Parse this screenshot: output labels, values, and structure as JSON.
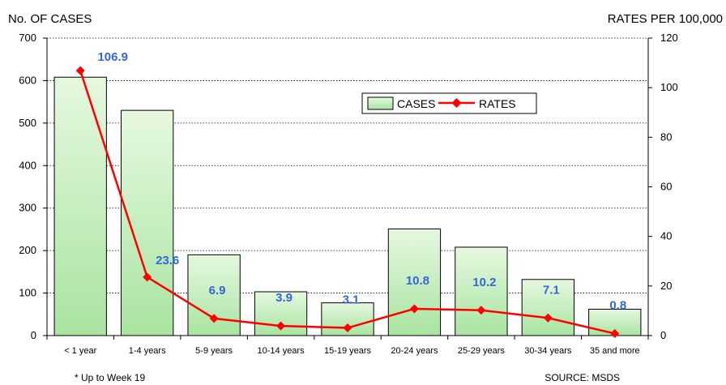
{
  "chart_data": {
    "type": "bar",
    "categories": [
      "< 1 year",
      "1-4 years",
      "5-9 years",
      "10-14 years",
      "15-19 years",
      "20-24 years",
      "25-29 years",
      "30-34 years",
      "35 and more"
    ],
    "series": [
      {
        "name": "CASES",
        "axis": "left",
        "type": "bar",
        "values": [
          608,
          530,
          190,
          103,
          77,
          251,
          208,
          132,
          62
        ]
      },
      {
        "name": "RATES",
        "axis": "right",
        "type": "line",
        "values": [
          106.9,
          23.6,
          6.9,
          3.9,
          3.1,
          10.8,
          10.2,
          7.1,
          0.8
        ]
      }
    ],
    "rate_labels": [
      "106.9",
      "23.6",
      "6.9",
      "3.9",
      "3.1",
      "10.8",
      "10.2",
      "7.1",
      "0.8"
    ],
    "ylabel_left": "No. OF CASES",
    "ylabel_right": "RATES PER 100,000",
    "ylim_left": [
      0,
      700
    ],
    "ylim_right": [
      0,
      120
    ],
    "yticks_left": [
      0,
      100,
      200,
      300,
      400,
      500,
      600,
      700
    ],
    "yticks_right": [
      0,
      20,
      40,
      60,
      80,
      100,
      120
    ],
    "grid": true,
    "legend_position": "top-right",
    "colors": {
      "bar_fill_top": "#e6f8e0",
      "bar_fill_bottom": "#a8e4a0",
      "line": "#ff0000",
      "data_label": "#3366dd"
    }
  },
  "footnote_left": "* Up to Week 19",
  "footnote_right": "SOURCE: MSDS"
}
